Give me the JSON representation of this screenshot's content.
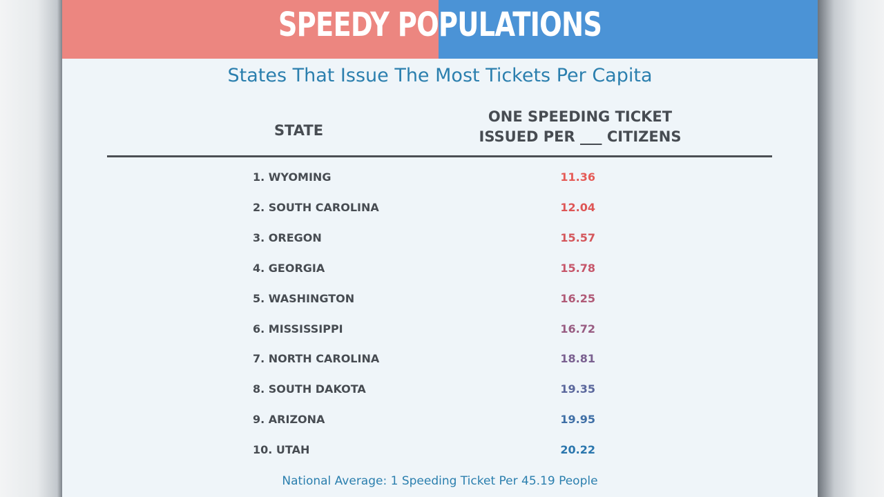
{
  "banner": {
    "title": "SPEEDY POPULATIONS",
    "left_color": "#ec8680",
    "right_color": "#4b93d6"
  },
  "chart_data": {
    "type": "table",
    "title": "States That Issue The Most Tickets Per Capita",
    "columns": [
      "STATE",
      "ONE SPEEDING TICKET\nISSUED PER ___ CITIZENS"
    ],
    "rows": [
      {
        "label": "1. WYOMING",
        "value": "11.36",
        "color": "#e55b57"
      },
      {
        "label": "2. SOUTH CAROLINA",
        "value": "12.04",
        "color": "#de5656"
      },
      {
        "label": "3. OREGON",
        "value": "15.57",
        "color": "#d4565b"
      },
      {
        "label": "4. GEORGIA",
        "value": "15.78",
        "color": "#c6566a"
      },
      {
        "label": "5. WASHINGTON",
        "value": "16.25",
        "color": "#b05a77"
      },
      {
        "label": "6. MISSISSIPPI",
        "value": "16.72",
        "color": "#985c82"
      },
      {
        "label": "7. NORTH CAROLINA",
        "value": "18.81",
        "color": "#7a6090"
      },
      {
        "label": "8. SOUTH DAKOTA",
        "value": "19.35",
        "color": "#5a679c"
      },
      {
        "label": "9. ARIZONA",
        "value": "19.95",
        "color": "#3f6fa6"
      },
      {
        "label": "10. UTAH",
        "value": "20.22",
        "color": "#2a76ad"
      }
    ],
    "footnote": "National Average: 1 Speeding Ticket Per 45.19 People"
  }
}
